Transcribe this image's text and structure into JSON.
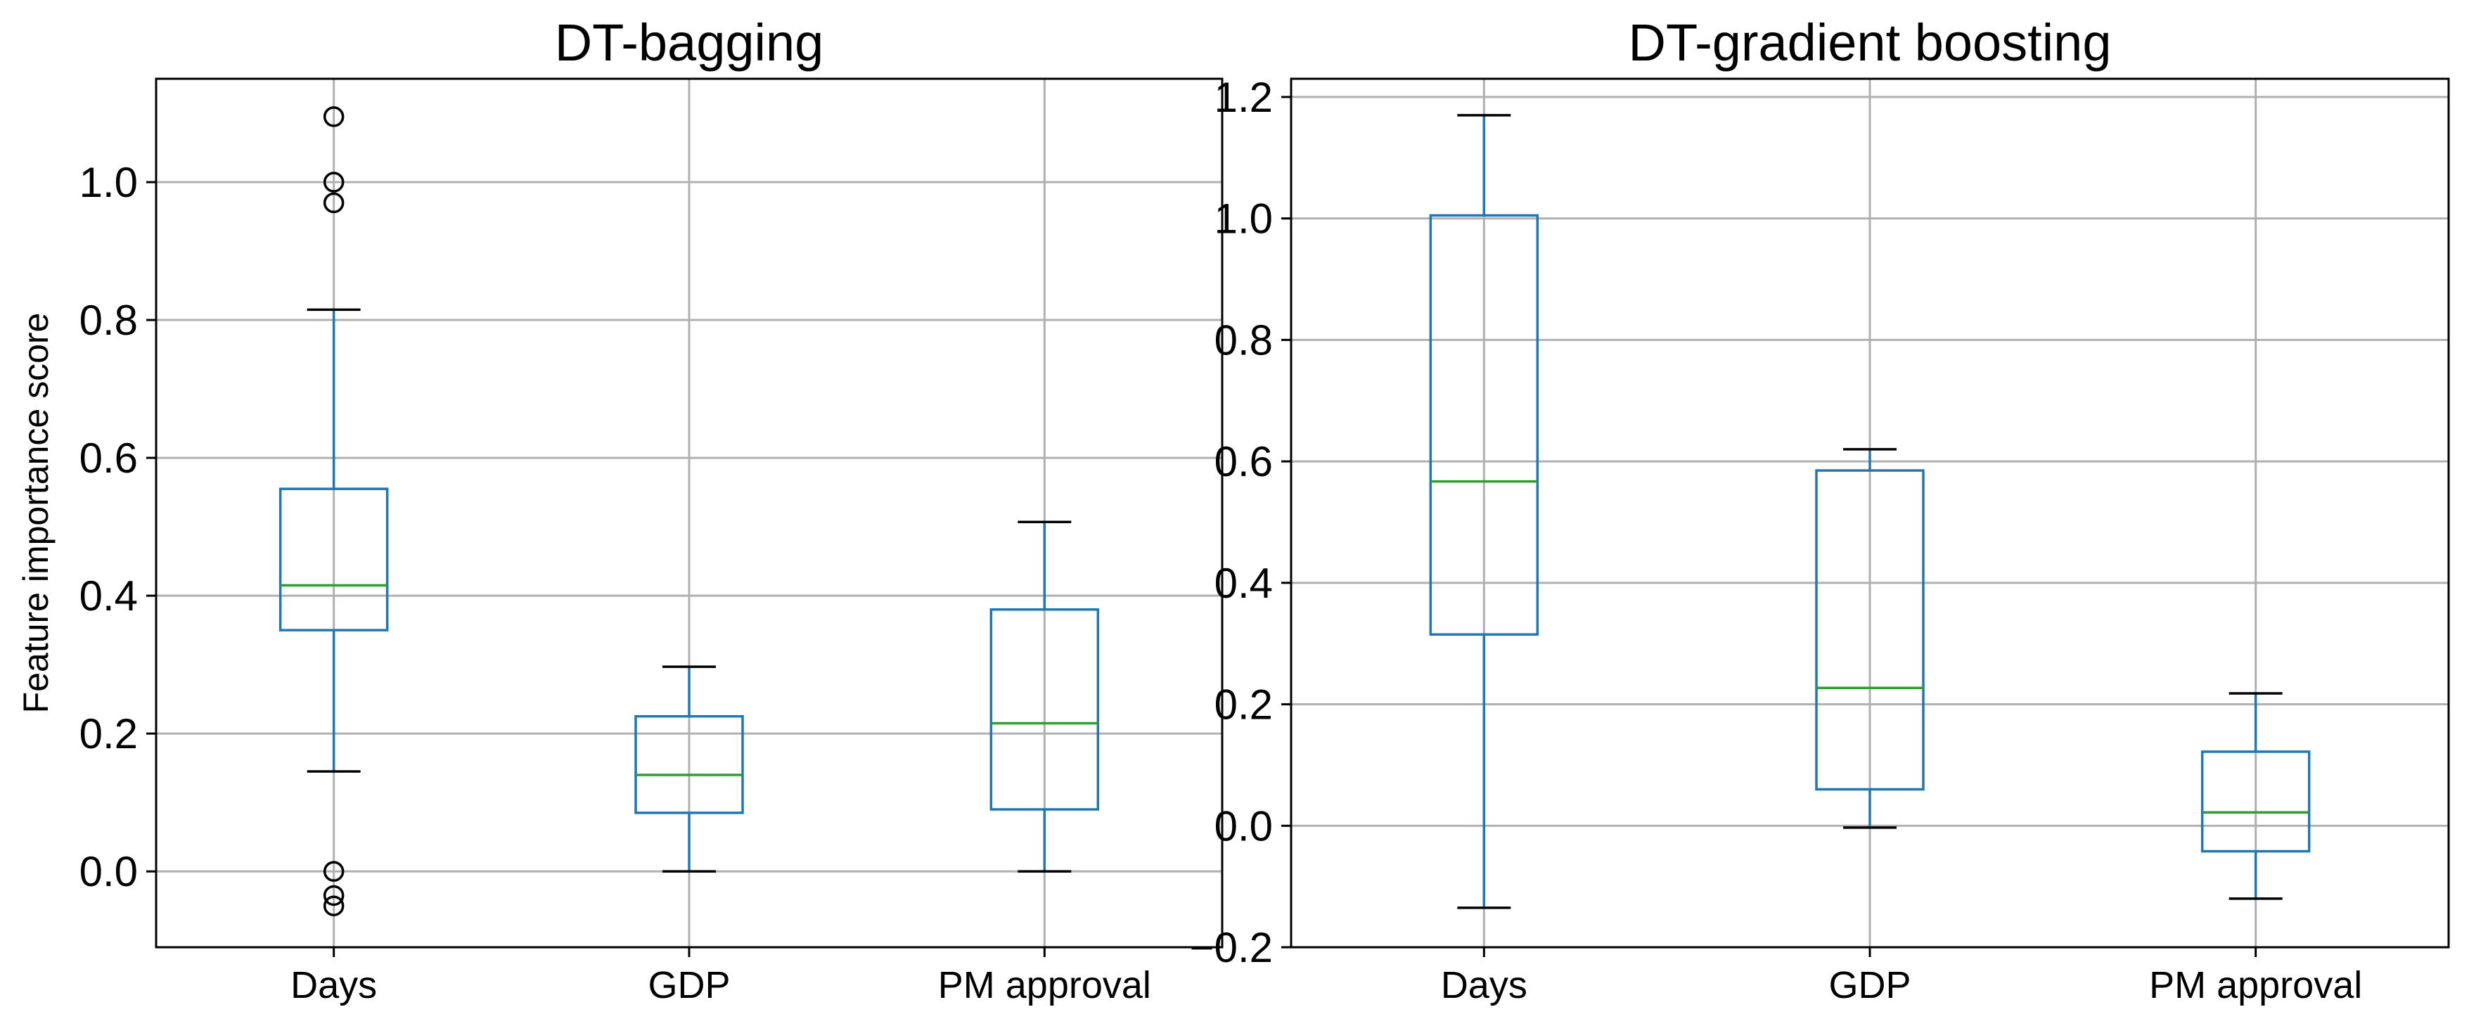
{
  "colors": {
    "box": "#1f77b4",
    "median": "#2ca02c",
    "cap": "#000000",
    "flier": "#000000",
    "grid": "#b0b0b0"
  },
  "chart_data": [
    {
      "type": "box",
      "title": "DT-bagging",
      "xlabel": "",
      "ylabel": "Feature importance score",
      "ylim": [
        -0.11,
        1.15
      ],
      "yticks": [
        0.0,
        0.2,
        0.4,
        0.6,
        0.8,
        1.0
      ],
      "ytick_labels": [
        "0.0",
        "0.2",
        "0.4",
        "0.6",
        "0.8",
        "1.0"
      ],
      "grid": true,
      "categories": [
        "Days",
        "GDP",
        "PM approval"
      ],
      "boxes": [
        {
          "whislo": 0.145,
          "q1": 0.35,
          "med": 0.415,
          "q3": 0.555,
          "whishi": 0.815,
          "fliers": [
            1.095,
            1.0,
            0.97,
            0.0,
            -0.035,
            -0.05
          ]
        },
        {
          "whislo": 0.0,
          "q1": 0.085,
          "med": 0.14,
          "q3": 0.225,
          "whishi": 0.297,
          "fliers": []
        },
        {
          "whislo": 0.0,
          "q1": 0.09,
          "med": 0.215,
          "q3": 0.38,
          "whishi": 0.507,
          "fliers": []
        }
      ]
    },
    {
      "type": "box",
      "title": "DT-gradient boosting",
      "xlabel": "",
      "ylabel": "",
      "ylim": [
        -0.2,
        1.23
      ],
      "yticks": [
        -0.2,
        0.0,
        0.2,
        0.4,
        0.6,
        0.8,
        1.0,
        1.2
      ],
      "ytick_labels": [
        "−0.2",
        "0.0",
        "0.2",
        "0.4",
        "0.6",
        "0.8",
        "1.0",
        "1.2"
      ],
      "grid": true,
      "categories": [
        "Days",
        "GDP",
        "PM approval"
      ],
      "boxes": [
        {
          "whislo": -0.135,
          "q1": 0.315,
          "med": 0.567,
          "q3": 1.005,
          "whishi": 1.17,
          "fliers": []
        },
        {
          "whislo": -0.003,
          "q1": 0.06,
          "med": 0.227,
          "q3": 0.585,
          "whishi": 0.62,
          "fliers": []
        },
        {
          "whislo": -0.12,
          "q1": -0.042,
          "med": 0.022,
          "q3": 0.122,
          "whishi": 0.218,
          "fliers": []
        }
      ]
    }
  ]
}
